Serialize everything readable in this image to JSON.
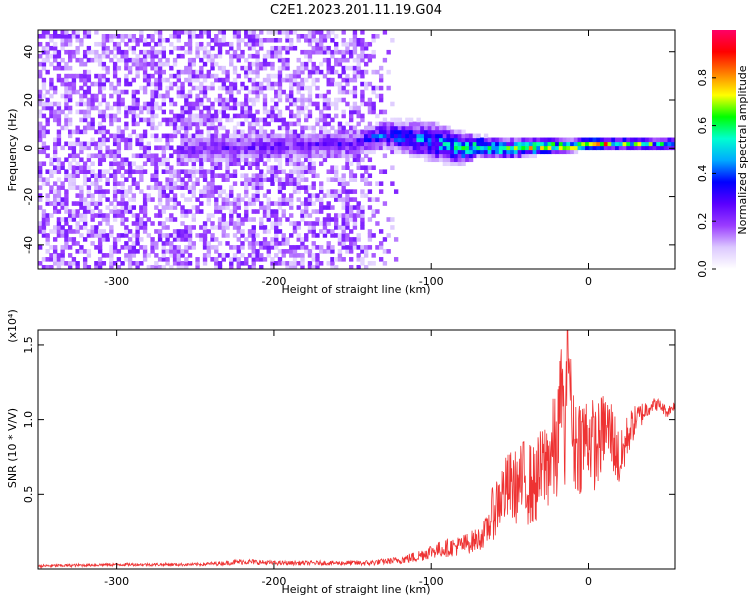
{
  "title": "C2E1.2023.201.11.19.G04",
  "chart_data": [
    {
      "type": "heatmap",
      "title": "",
      "xlabel": "Height of straight line (km)",
      "ylabel": "Frequency (Hz)",
      "xlim": [
        -350,
        55
      ],
      "ylim": [
        -50,
        49
      ],
      "xticks": [
        -300,
        -200,
        -100,
        0
      ],
      "yticks": [
        -40,
        -20,
        0,
        20,
        40
      ],
      "colorbar": {
        "label": "Normalized spectral amplitude",
        "range": [
          0.0,
          1.0
        ],
        "ticks": [
          0.0,
          0.2,
          0.4,
          0.6,
          0.8
        ],
        "colormap": [
          "#ffffff",
          "#dcc8ff",
          "#9a3cff",
          "#5a00ff",
          "#0000ff",
          "#00aaff",
          "#00ffd0",
          "#00ff00",
          "#ffff00",
          "#ff8000",
          "#ff0000",
          "#ff0066"
        ]
      },
      "signal_band": {
        "x": [
          -250,
          -150,
          -130,
          -100,
          -80,
          -70,
          -50,
          -30,
          -10,
          0,
          20,
          55
        ],
        "center_hz": [
          0,
          2,
          6,
          3,
          0,
          1,
          0,
          1,
          1,
          2,
          2,
          2
        ],
        "halfwidth_hz": [
          8,
          7,
          7,
          10,
          8,
          5,
          5,
          4,
          3,
          3,
          3,
          3
        ],
        "peak_amplitude": [
          0.25,
          0.3,
          0.45,
          0.5,
          0.6,
          0.75,
          0.7,
          0.85,
          0.9,
          0.9,
          0.7,
          0.55
        ]
      },
      "noise_region": {
        "x": [
          -350,
          -120
        ],
        "amplitude": 0.2
      }
    },
    {
      "type": "line",
      "title": "",
      "xlabel": "Height of straight line (km)",
      "ylabel": "SNR (10 * V/V)",
      "y_multiplier": "(x10⁴)",
      "xlim": [
        -350,
        55
      ],
      "ylim": [
        0.0,
        1.6
      ],
      "xticks": [
        -300,
        -200,
        -100,
        0
      ],
      "yticks": [
        0.5,
        1.0,
        1.5
      ],
      "series": [
        {
          "color": "#ee3333",
          "x": [
            -350,
            -300,
            -250,
            -230,
            -220,
            -200,
            -160,
            -140,
            -130,
            -120,
            -110,
            -100,
            -90,
            -80,
            -70,
            -65,
            -60,
            -55,
            -50,
            -45,
            -40,
            -35,
            -30,
            -25,
            -20,
            -17,
            -15,
            -13,
            -10,
            -5,
            0,
            5,
            10,
            15,
            20,
            25,
            30,
            35,
            40,
            45,
            50,
            55
          ],
          "y": [
            0.02,
            0.03,
            0.03,
            0.04,
            0.05,
            0.04,
            0.04,
            0.04,
            0.05,
            0.06,
            0.08,
            0.12,
            0.14,
            0.16,
            0.2,
            0.25,
            0.4,
            0.5,
            0.55,
            0.55,
            0.6,
            0.55,
            0.65,
            0.75,
            0.8,
            1.25,
            0.8,
            1.6,
            0.85,
            0.85,
            0.9,
            0.8,
            0.95,
            0.9,
            0.7,
            0.9,
            1.0,
            1.05,
            1.1,
            1.1,
            1.05,
            1.1
          ],
          "amplitude": [
            0.01,
            0.01,
            0.01,
            0.015,
            0.02,
            0.015,
            0.015,
            0.02,
            0.02,
            0.025,
            0.04,
            0.05,
            0.06,
            0.07,
            0.08,
            0.1,
            0.2,
            0.22,
            0.25,
            0.25,
            0.3,
            0.28,
            0.3,
            0.35,
            0.4,
            0.3,
            0.4,
            0.2,
            0.35,
            0.35,
            0.3,
            0.3,
            0.25,
            0.25,
            0.2,
            0.15,
            0.1,
            0.08,
            0.05,
            0.04,
            0.04,
            0.03
          ]
        }
      ]
    }
  ]
}
